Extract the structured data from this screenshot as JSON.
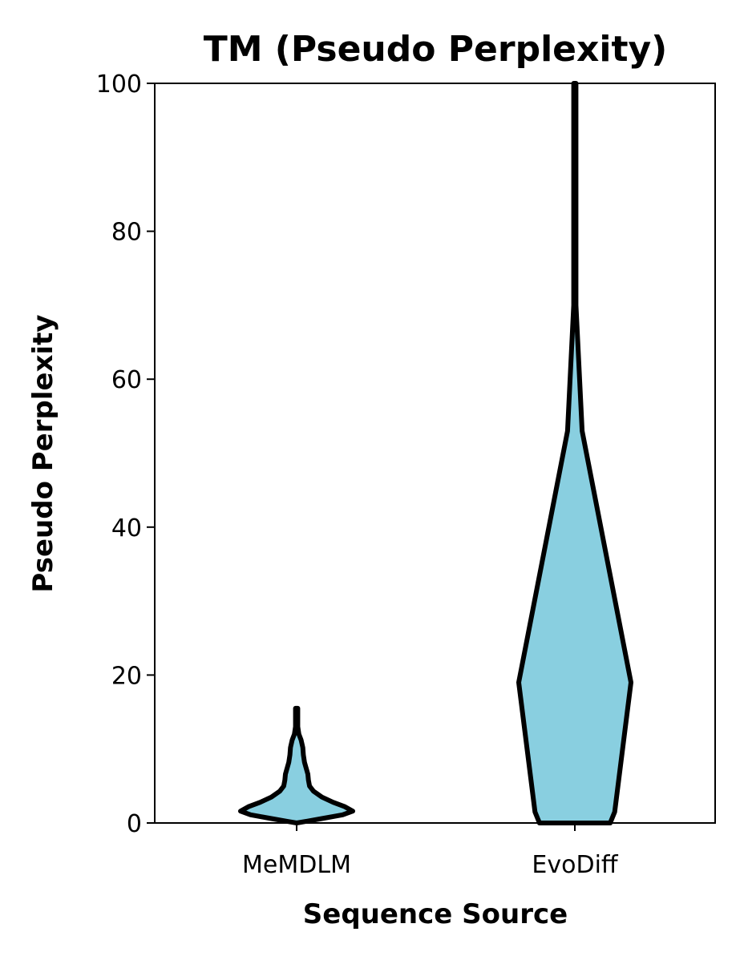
{
  "chart_data": {
    "type": "violin",
    "title": "TM (Pseudo Perplexity)",
    "xlabel": "Sequence Source",
    "ylabel": "Pseudo Perplexity",
    "ylim": [
      0,
      100
    ],
    "yticks": [
      "0",
      "20",
      "40",
      "60",
      "80",
      "100"
    ],
    "categories": [
      "MeMDLM",
      "EvoDiff"
    ],
    "fill_color": "#89cfe0",
    "edge_color": "#000000",
    "grid": false,
    "series": [
      {
        "name": "MeMDLM",
        "min": 0,
        "max": 15.5,
        "profile": [
          {
            "y": 0,
            "w": 0.0
          },
          {
            "y": 0.2,
            "w": 0.15
          },
          {
            "y": 0.6,
            "w": 0.45
          },
          {
            "y": 1.1,
            "w": 0.82
          },
          {
            "y": 1.6,
            "w": 1.0
          },
          {
            "y": 2.2,
            "w": 0.86
          },
          {
            "y": 2.8,
            "w": 0.65
          },
          {
            "y": 3.5,
            "w": 0.45
          },
          {
            "y": 4.3,
            "w": 0.3
          },
          {
            "y": 5.0,
            "w": 0.23
          },
          {
            "y": 5.8,
            "w": 0.21
          },
          {
            "y": 6.6,
            "w": 0.2
          },
          {
            "y": 7.4,
            "w": 0.17
          },
          {
            "y": 8.2,
            "w": 0.14
          },
          {
            "y": 9.2,
            "w": 0.12
          },
          {
            "y": 10.2,
            "w": 0.11
          },
          {
            "y": 11.2,
            "w": 0.08
          },
          {
            "y": 12.0,
            "w": 0.04
          },
          {
            "y": 13.0,
            "w": 0.02
          },
          {
            "y": 15.5,
            "w": 0.02
          }
        ]
      },
      {
        "name": "EvoDiff",
        "min": 0,
        "max": 100,
        "profile": [
          {
            "y": 0,
            "w": 0.63
          },
          {
            "y": 1.5,
            "w": 0.71
          },
          {
            "y": 19,
            "w": 1.0
          },
          {
            "y": 53,
            "w": 0.13
          },
          {
            "y": 70,
            "w": 0.02
          },
          {
            "y": 100,
            "w": 0.02
          }
        ]
      }
    ]
  }
}
